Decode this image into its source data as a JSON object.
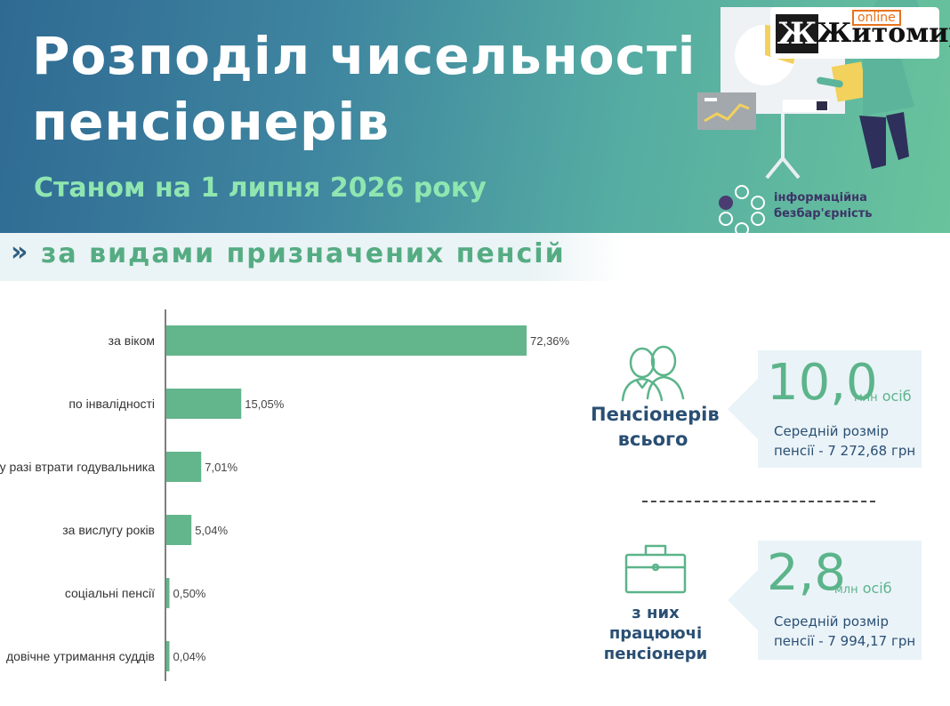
{
  "header": {
    "title_line1": "Розподіл чисельності",
    "title_line2": "пенсіонерів",
    "subtitle": "Станом на 1 липня 2026 року"
  },
  "logo": {
    "icon_letter": "Ж",
    "name": "Житомир",
    "badge": "online"
  },
  "badge": {
    "line1": "інформаційна",
    "line2": "безбар'єрність"
  },
  "section": {
    "chevron": "»",
    "title": "за видами призначених пенсій"
  },
  "chart_data": {
    "type": "bar",
    "orientation": "horizontal",
    "categories": [
      "за віком",
      "по інвалідності",
      "у разі втрати годувальника",
      "за вислугу років",
      "соціальні пенсії",
      "довічне утримання суддів"
    ],
    "values": [
      72.36,
      15.05,
      7.01,
      5.04,
      0.5,
      0.04
    ],
    "value_labels": [
      "72,36%",
      "15,05%",
      "7,01%",
      "5,04%",
      "0,50%",
      "0,04%"
    ],
    "xlim": [
      0,
      100
    ],
    "grid": false,
    "color": "#63b58c"
  },
  "stats": {
    "total": {
      "label_line1": "Пенсіонерів",
      "label_line2": "всього",
      "value": "10,0",
      "unit1": "млн",
      "unit2": "осіб",
      "avg_line1": "Середній розмір",
      "avg_line2": "пенсії - 7 272,68 грн"
    },
    "working": {
      "label_line1": "з них",
      "label_line2": "працюючі",
      "label_line3": "пенсіонери",
      "value": "2,8",
      "unit1": "млн",
      "unit2": "осіб",
      "avg_line1": "Середній розмір",
      "avg_line2": "пенсії - 7 994,17 грн"
    }
  },
  "colors": {
    "bar": "#63b58c",
    "accent_green": "#5cb48a",
    "navy": "#2a4f73",
    "header_start": "#2f6a93",
    "header_end": "#69c39c"
  },
  "icons": [
    "people-icon",
    "briefcase-icon",
    "presentation-icon",
    "circles-icon"
  ]
}
